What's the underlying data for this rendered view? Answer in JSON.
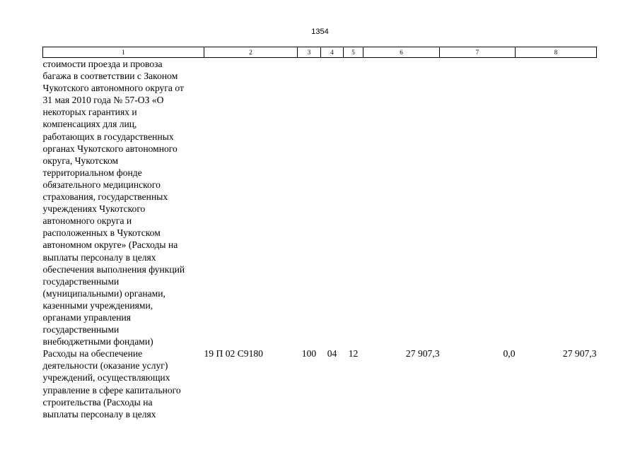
{
  "page_number": "1354",
  "table": {
    "headers": [
      "1",
      "2",
      "3",
      "4",
      "5",
      "6",
      "7",
      "8"
    ],
    "rows": [
      {
        "name": "стоимости проезда и провоза\nбагажа в соответствии с Законом\nЧукотского автономного округа от\n31 мая 2010 года № 57-ОЗ «О\nнекоторых гарантиях и\nкомпенсациях для лиц,\nработающих в государственных\nорганах Чукотского автономного\nокруга, Чукотском\nтерриториальном фонде\nобязательного медицинского\nстрахования, государственных\nучреждениях Чукотского\nавтономного округа и\nрасположенных в Чукотском\nавтономном округе» (Расходы на\nвыплаты персоналу в целях\nобеспечения выполнения функций\nгосударственными\n(муниципальными) органами,\nказенными учреждениями,\nорганами управления\nгосударственными\nвнебюджетными фондами)",
        "code": "",
        "c3": "",
        "c4": "",
        "c5": "",
        "c6": "",
        "c7": "",
        "c8": ""
      },
      {
        "name": "Расходы на обеспечение\nдеятельности (оказание услуг)\nучреждений, осуществляющих\nуправление в сфере капитального\nстроительства (Расходы на\nвыплаты персоналу в целях",
        "code": "19 П 02 С9180",
        "c3": "100",
        "c4": "04",
        "c5": "12",
        "c6": "27 907,3",
        "c7": "0,0",
        "c8": "27 907,3"
      }
    ]
  }
}
